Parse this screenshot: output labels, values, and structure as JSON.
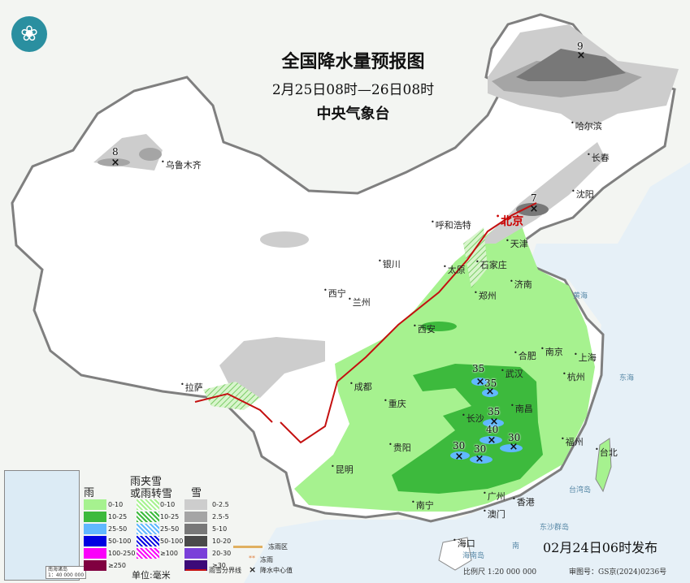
{
  "title": "全国降水量预报图",
  "period": "2月25日08时—26日08时",
  "agency": "中央气象台",
  "issued": "02月24日06时发布",
  "scale": "比例尺 1:20 000 000",
  "map_approval": "审图号：GS京(2024)0236号",
  "logo_icon": "cma-logo-icon",
  "cities": [
    {
      "name": "北京",
      "capital": true
    },
    {
      "name": "哈尔滨"
    },
    {
      "name": "长春"
    },
    {
      "name": "沈阳"
    },
    {
      "name": "乌鲁木齐"
    },
    {
      "name": "呼和浩特"
    },
    {
      "name": "天津"
    },
    {
      "name": "石家庄"
    },
    {
      "name": "太原"
    },
    {
      "name": "银川"
    },
    {
      "name": "西宁"
    },
    {
      "name": "兰州"
    },
    {
      "name": "济南"
    },
    {
      "name": "郑州"
    },
    {
      "name": "西安"
    },
    {
      "name": "合肥"
    },
    {
      "name": "南京"
    },
    {
      "name": "上海"
    },
    {
      "name": "武汉"
    },
    {
      "name": "杭州"
    },
    {
      "name": "成都"
    },
    {
      "name": "重庆"
    },
    {
      "name": "南昌"
    },
    {
      "name": "长沙"
    },
    {
      "name": "拉萨"
    },
    {
      "name": "贵阳"
    },
    {
      "name": "福州"
    },
    {
      "name": "台北"
    },
    {
      "name": "昆明"
    },
    {
      "name": "广州"
    },
    {
      "name": "南宁"
    },
    {
      "name": "澳门"
    },
    {
      "name": "香港"
    },
    {
      "name": "海口"
    }
  ],
  "seas": [
    "黄海",
    "东海",
    "台湾岛",
    "东沙群岛",
    "海南岛",
    "南"
  ],
  "precip_centers": [
    "9",
    "8",
    "7",
    "35",
    "35",
    "35",
    "40",
    "30",
    "30",
    "30"
  ],
  "inset": {
    "caption_1": "南海诸岛",
    "caption_2": "1：40 000 000"
  },
  "legend": {
    "rain": {
      "title": "雨",
      "items": [
        {
          "label": "0-10",
          "color": "#a6f28f"
        },
        {
          "label": "10-25",
          "color": "#3dba3d"
        },
        {
          "label": "25-50",
          "color": "#61b8ff"
        },
        {
          "label": "50-100",
          "color": "#0000e1"
        },
        {
          "label": "100-250",
          "color": "#fa00fa"
        },
        {
          "label": "≥250",
          "color": "#800040"
        }
      ]
    },
    "sleet": {
      "title_1": "雨夹雪",
      "title_2": "或雨转雪",
      "items": [
        {
          "label": "0-10",
          "color": "#a6f28f"
        },
        {
          "label": "10-25",
          "color": "#3dba3d"
        },
        {
          "label": "25-50",
          "color": "#61b8ff"
        },
        {
          "label": "50-100",
          "color": "#0000e1"
        },
        {
          "label": "≥100",
          "color": "#fa00fa"
        }
      ]
    },
    "snow": {
      "title": "雪",
      "items": [
        {
          "label": "0-2.5",
          "color": "#cdcdcd"
        },
        {
          "label": "2.5-5",
          "color": "#a5a5a5"
        },
        {
          "label": "5-10",
          "color": "#787878"
        },
        {
          "label": "10-20",
          "color": "#4a4a4a"
        },
        {
          "label": "20-30",
          "color": "#7a40d9"
        },
        {
          "label": "≥30",
          "color": "#3c0a78"
        }
      ]
    },
    "unit": "单位:毫米",
    "freezing_zone": "冻雨区",
    "freezing_rain": "冻雨",
    "freeze_line": "雨雪分界线",
    "center_value": "降水中心值"
  }
}
